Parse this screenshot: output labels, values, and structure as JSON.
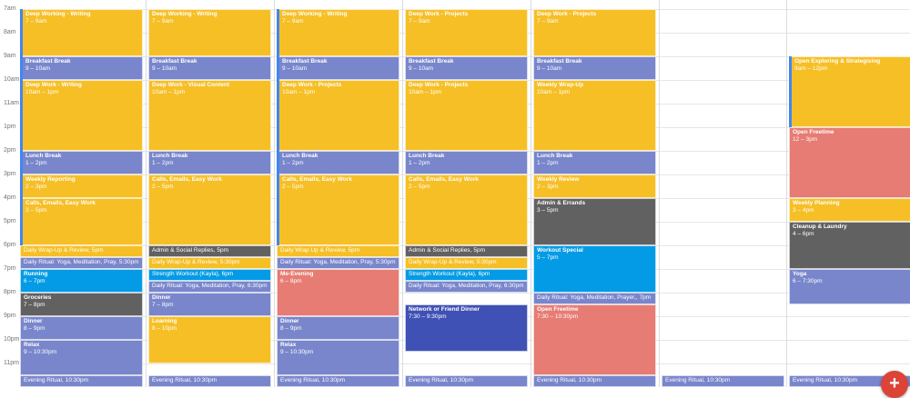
{
  "colors": {
    "yellow": "#f6bf26",
    "lavender": "#7986cb",
    "graphite": "#616161",
    "peacock": "#039be5",
    "blueberry": "#3f51b5",
    "flamingo": "#e67c73",
    "accent": "#4285f4",
    "fab": "#db4437"
  },
  "hour_labels": [
    "7am",
    "8am",
    "9am",
    "10am",
    "11am",
    "1pm",
    "2pm",
    "3pm",
    "4pm",
    "5pm",
    "6pm",
    "7pm",
    "8pm",
    "9pm",
    "10pm",
    "11pm"
  ],
  "fab": {
    "icon": "plus-icon",
    "label": "+"
  },
  "days": [
    {
      "events": [
        {
          "title": "Deep Working - Writing",
          "time": "7 – 9am",
          "start": 7,
          "end": 9,
          "color": "yellow",
          "edge": true
        },
        {
          "title": "Breakfast Break",
          "time": "9 – 10am",
          "start": 9,
          "end": 10,
          "color": "lavender",
          "edge": true
        },
        {
          "title": "Deep Work - Writing",
          "time": "10am – 1pm",
          "start": 10,
          "end": 13,
          "color": "yellow",
          "edge": true
        },
        {
          "title": "Lunch Break",
          "time": "1 – 2pm",
          "start": 13,
          "end": 14,
          "color": "lavender",
          "edge": true
        },
        {
          "title": "Weekly Reporting",
          "time": "2 – 3pm",
          "start": 14,
          "end": 15,
          "color": "yellow",
          "edge": true
        },
        {
          "title": "Calls, Emails, Easy Work",
          "time": "3 – 5pm",
          "start": 15,
          "end": 17,
          "color": "yellow",
          "edge": true
        },
        {
          "title": "Daily Wrap-Up & Review,",
          "time": "5pm",
          "start": 17,
          "end": 17.5,
          "color": "yellow",
          "inline": true
        },
        {
          "title": "Daily Ritual: Yoga, Meditation, Pray,",
          "time": "5:30pm",
          "start": 17.5,
          "end": 18,
          "color": "lavender",
          "inline": true
        },
        {
          "title": "Running",
          "time": "6 – 7pm",
          "start": 18,
          "end": 19,
          "color": "peacock"
        },
        {
          "title": "Groceries",
          "time": "7 – 8pm",
          "start": 19,
          "end": 20,
          "color": "graphite"
        },
        {
          "title": "Dinner",
          "time": "8 – 9pm",
          "start": 20,
          "end": 21,
          "color": "lavender"
        },
        {
          "title": "Relax",
          "time": "9 – 10:30pm",
          "start": 21,
          "end": 22.5,
          "color": "lavender"
        },
        {
          "title": "Evening Ritual,",
          "time": "10:30pm",
          "start": 22.5,
          "end": 23,
          "color": "lavender",
          "inline": true
        }
      ]
    },
    {
      "events": [
        {
          "title": "Deep Working - Writing",
          "time": "7 – 9am",
          "start": 7,
          "end": 9,
          "color": "yellow"
        },
        {
          "title": "Breakfast Break",
          "time": "9 – 10am",
          "start": 9,
          "end": 10,
          "color": "lavender"
        },
        {
          "title": "Deep Work - Visual Content",
          "time": "10am – 1pm",
          "start": 10,
          "end": 13,
          "color": "yellow"
        },
        {
          "title": "Lunch Break",
          "time": "1 – 2pm",
          "start": 13,
          "end": 14,
          "color": "lavender"
        },
        {
          "title": "Calls, Emails, Easy Work",
          "time": "2 – 5pm",
          "start": 14,
          "end": 17,
          "color": "yellow"
        },
        {
          "title": "Admin & Social Replies,",
          "time": "5pm",
          "start": 17,
          "end": 17.5,
          "color": "graphite",
          "inline": true
        },
        {
          "title": "Daily Wrap-Up & Review,",
          "time": "5:30pm",
          "start": 17.5,
          "end": 18,
          "color": "yellow",
          "inline": true
        },
        {
          "title": "Strength Workout (Kayla),",
          "time": "6pm",
          "start": 18,
          "end": 18.5,
          "color": "peacock",
          "inline": true
        },
        {
          "title": "Daily Ritual: Yoga, Meditation, Pray,",
          "time": "6:30pm",
          "start": 18.5,
          "end": 19,
          "color": "lavender",
          "inline": true
        },
        {
          "title": "Dinner",
          "time": "7 – 8pm",
          "start": 19,
          "end": 20,
          "color": "lavender"
        },
        {
          "title": "Learning",
          "time": "8 – 10pm",
          "start": 20,
          "end": 22,
          "color": "yellow"
        },
        {
          "title": "Evening Ritual,",
          "time": "10:30pm",
          "start": 22.5,
          "end": 23,
          "color": "lavender",
          "inline": true
        }
      ]
    },
    {
      "events": [
        {
          "title": "Deep Working - Writing",
          "time": "7 – 9am",
          "start": 7,
          "end": 9,
          "color": "yellow",
          "edge": true
        },
        {
          "title": "Breakfast Break",
          "time": "9 – 10am",
          "start": 9,
          "end": 10,
          "color": "lavender",
          "edge": true
        },
        {
          "title": "Deep Work - Projects",
          "time": "10am – 1pm",
          "start": 10,
          "end": 13,
          "color": "yellow",
          "edge": true
        },
        {
          "title": "Lunch Break",
          "time": "1 – 2pm",
          "start": 13,
          "end": 14,
          "color": "lavender",
          "edge": true
        },
        {
          "title": "Calls, Emails, Easy Work",
          "time": "2 – 5pm",
          "start": 14,
          "end": 17,
          "color": "yellow",
          "edge": true
        },
        {
          "title": "Daily Wrap Up & Review,",
          "time": "5pm",
          "start": 17,
          "end": 17.5,
          "color": "yellow",
          "inline": true
        },
        {
          "title": "Daily Ritual: Yoga, Meditation, Pray,",
          "time": "5:30pm",
          "start": 17.5,
          "end": 18,
          "color": "lavender",
          "inline": true
        },
        {
          "title": "Me-Evening",
          "time": "6 – 8pm",
          "start": 18,
          "end": 20,
          "color": "flamingo"
        },
        {
          "title": "Dinner",
          "time": "8 – 9pm",
          "start": 20,
          "end": 21,
          "color": "lavender"
        },
        {
          "title": "Relax",
          "time": "9 – 10:30pm",
          "start": 21,
          "end": 22.5,
          "color": "lavender"
        },
        {
          "title": "Evening Ritual,",
          "time": "10:30pm",
          "start": 22.5,
          "end": 23,
          "color": "lavender",
          "inline": true
        }
      ]
    },
    {
      "events": [
        {
          "title": "Deep Work - Projects",
          "time": "7 – 9am",
          "start": 7,
          "end": 9,
          "color": "yellow"
        },
        {
          "title": "Breakfast Break",
          "time": "9 – 10am",
          "start": 9,
          "end": 10,
          "color": "lavender"
        },
        {
          "title": "Deep Work - Projects",
          "time": "10am – 1pm",
          "start": 10,
          "end": 13,
          "color": "yellow"
        },
        {
          "title": "Lunch Break",
          "time": "1 – 2pm",
          "start": 13,
          "end": 14,
          "color": "lavender"
        },
        {
          "title": "Calls, Emails, Easy Work",
          "time": "2 – 5pm",
          "start": 14,
          "end": 17,
          "color": "yellow"
        },
        {
          "title": "Admin & Social Replies,",
          "time": "5pm",
          "start": 17,
          "end": 17.5,
          "color": "graphite",
          "inline": true
        },
        {
          "title": "Daily Wrap-Up & Review,",
          "time": "5:30pm",
          "start": 17.5,
          "end": 18,
          "color": "yellow",
          "inline": true
        },
        {
          "title": "Strength Workout (Kayla),",
          "time": "6pm",
          "start": 18,
          "end": 18.5,
          "color": "peacock",
          "inline": true
        },
        {
          "title": "Daily Ritual: Yoga, Meditation, Pray,",
          "time": "6:30pm",
          "start": 18.5,
          "end": 19,
          "color": "lavender",
          "inline": true
        },
        {
          "title": "Network or Friend Dinner",
          "time": "7:30 – 9:30pm",
          "start": 19.5,
          "end": 21.5,
          "color": "blueberry"
        },
        {
          "title": "Evening Ritual,",
          "time": "10:30pm",
          "start": 22.5,
          "end": 23,
          "color": "lavender",
          "inline": true
        }
      ]
    },
    {
      "events": [
        {
          "title": "Deep Work - Projects",
          "time": "7 – 9am",
          "start": 7,
          "end": 9,
          "color": "yellow"
        },
        {
          "title": "Breakfast Break",
          "time": "9 – 10am",
          "start": 9,
          "end": 10,
          "color": "lavender"
        },
        {
          "title": "Weekly Wrap-Up",
          "time": "10am – 1pm",
          "start": 10,
          "end": 13,
          "color": "yellow"
        },
        {
          "title": "Lunch Break",
          "time": "1 – 2pm",
          "start": 13,
          "end": 14,
          "color": "lavender"
        },
        {
          "title": "Weekly Review",
          "time": "2 – 3pm",
          "start": 14,
          "end": 15,
          "color": "yellow"
        },
        {
          "title": "Admin & Errands",
          "time": "3 – 5pm",
          "start": 15,
          "end": 17,
          "color": "graphite"
        },
        {
          "title": "Workout Special",
          "time": "5 – 7pm",
          "start": 17,
          "end": 19,
          "color": "peacock"
        },
        {
          "title": "Daily Ritual: Yoga, Meditation, Prayer,,",
          "time": "7pm",
          "start": 19,
          "end": 19.5,
          "color": "lavender",
          "inline": true
        },
        {
          "title": "Open Freetime",
          "time": "7:30 – 10:30pm",
          "start": 19.5,
          "end": 22.5,
          "color": "flamingo"
        },
        {
          "title": "Evening Ritual,",
          "time": "10:30pm",
          "start": 22.5,
          "end": 23,
          "color": "lavender",
          "inline": true
        }
      ]
    },
    {
      "events": [
        {
          "title": "Evening Ritual,",
          "time": "10:30pm",
          "start": 22.5,
          "end": 23,
          "color": "lavender",
          "inline": true
        }
      ]
    },
    {
      "events": [
        {
          "title": "Open Exploring & Strategising",
          "time": "9am – 12pm",
          "start": 9,
          "end": 12,
          "color": "yellow",
          "edge": true
        },
        {
          "title": "Open Freetime",
          "time": "12 – 3pm",
          "start": 12,
          "end": 15,
          "color": "flamingo"
        },
        {
          "title": "Weekly Planning",
          "time": "3 – 4pm",
          "start": 15,
          "end": 16,
          "color": "yellow"
        },
        {
          "title": "Cleanup & Laundry",
          "time": "4 – 6pm",
          "start": 16,
          "end": 18,
          "color": "graphite"
        },
        {
          "title": "Yoga",
          "time": "6 – 7:30pm",
          "start": 18,
          "end": 19.5,
          "color": "lavender"
        },
        {
          "title": "Evening Ritual,",
          "time": "10:30pm",
          "start": 22.5,
          "end": 23,
          "color": "lavender",
          "inline": true
        }
      ]
    }
  ]
}
